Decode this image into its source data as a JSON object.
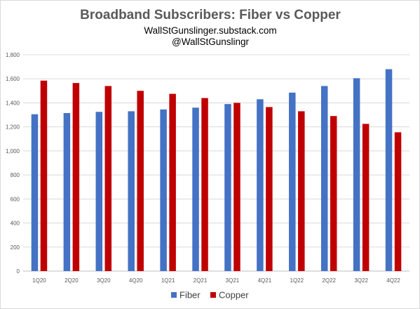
{
  "chart_data": {
    "type": "bar",
    "title": "Broadband Subscribers: Fiber vs Copper",
    "subtitle_lines": [
      "WallStGunslinger.substack.com",
      "@WallStGunslingr"
    ],
    "categories": [
      "1Q20",
      "2Q20",
      "3Q20",
      "4Q20",
      "1Q21",
      "2Q21",
      "3Q21",
      "4Q21",
      "1Q22",
      "2Q22",
      "3Q22",
      "4Q22"
    ],
    "series": [
      {
        "name": "Fiber",
        "color": "#4472c4",
        "values": [
          1305,
          1315,
          1325,
          1330,
          1345,
          1360,
          1390,
          1430,
          1485,
          1540,
          1605,
          1680
        ]
      },
      {
        "name": "Copper",
        "color": "#c00000",
        "values": [
          1585,
          1565,
          1540,
          1500,
          1475,
          1440,
          1400,
          1365,
          1330,
          1290,
          1225,
          1155
        ]
      }
    ],
    "y_ticks": [
      "0",
      "200",
      "400",
      "600",
      "800",
      "1,000",
      "1,200",
      "1,400",
      "1,600",
      "1,800"
    ],
    "ylim": [
      0,
      1800
    ],
    "grid": true,
    "legend": "bottom"
  }
}
